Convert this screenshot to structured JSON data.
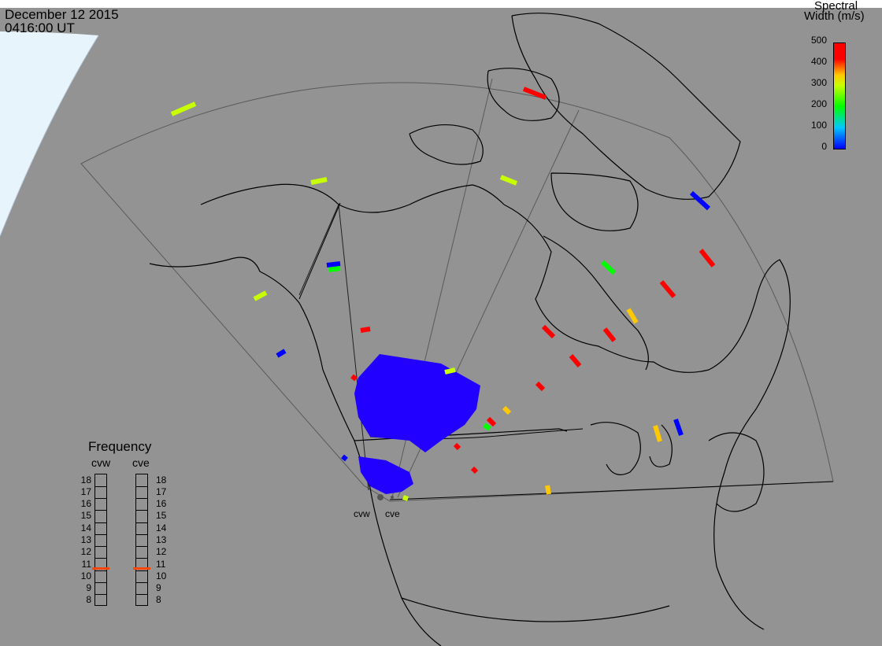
{
  "header": {
    "date": "December 12 2015",
    "time": "0416:00 UT"
  },
  "colorbar": {
    "title_line1": "Spectral",
    "title_line2": "Width (m/s)",
    "ticks": [
      "500",
      "400",
      "300",
      "200",
      "100",
      "0"
    ],
    "colors": [
      "#0000ff",
      "#00c8ff",
      "#00ff00",
      "#c8ff00",
      "#ffc800",
      "#ff0000"
    ]
  },
  "frequency": {
    "title": "Frequency",
    "radars": [
      "cvw",
      "cve"
    ],
    "levels": [
      "18",
      "17",
      "16",
      "15",
      "14",
      "13",
      "12",
      "11",
      "10",
      "9",
      "8"
    ],
    "marker_mhz": [
      10.7,
      10.7
    ],
    "marker_color": "#ff4500"
  },
  "stations": [
    "cvw",
    "cve"
  ],
  "colors": {
    "background": "#939393",
    "daylight": "#e8f4fc",
    "coastline": "#000000",
    "fov_outline": "#5a5a5a"
  }
}
